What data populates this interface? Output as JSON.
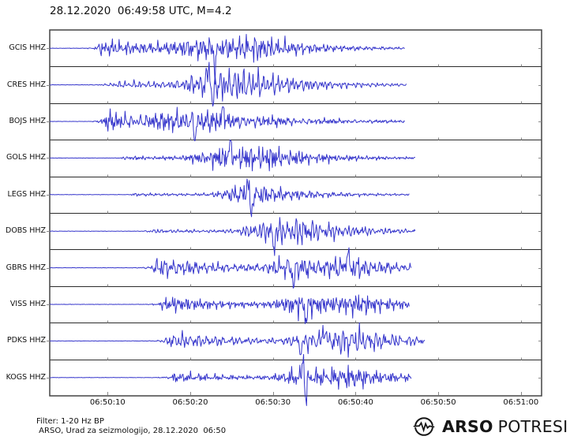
{
  "title": "28.12.2020  06:49:58 UTC, M=4.2",
  "footer": {
    "line1": "Filter: 1-20 Hz BP",
    "line2": " ARSO, Urad za seizmologijo, 28.12.2020  06:50"
  },
  "logo": {
    "name_bold": "ARSO",
    "name_light": "POTRESI",
    "icon": "seismic-wave-circle"
  },
  "colors": {
    "trace": "#3434cb",
    "frame": "#444444",
    "divider": "#2b2b2b",
    "tick": "#888888",
    "text": "#111111",
    "background": "#ffffff"
  },
  "chart_data": {
    "type": "line",
    "subtype": "seismogram-multitrace",
    "title": "28.12.2020  06:49:58 UTC, M=4.2",
    "event": {
      "date": "28.12.2020",
      "origin_time_utc": "06:49:58",
      "magnitude": 4.2
    },
    "filter": "1-20 Hz BP",
    "x_axis": {
      "tick_labels": [
        "06:50:10",
        "06:50:20",
        "06:50:30",
        "06:50:40",
        "06:50:50",
        "06:51:00"
      ],
      "tick_seconds": [
        10,
        20,
        30,
        40,
        50,
        60
      ],
      "window_start_s": 3.0,
      "window_end_s": 62.5,
      "reference": "06:50:00 UTC",
      "grid": false
    },
    "legend": null,
    "stations": [
      {
        "label": "GCIS HHZ",
        "seed": 11,
        "p_onset_s": 8.4,
        "trace_end_s": 46.0,
        "p_level": 4.5,
        "bumps": [
          [
            10.2,
            7,
            1.0,
            6
          ],
          [
            22.8,
            13,
            3.5,
            6
          ],
          [
            28.3,
            11,
            2,
            6
          ]
        ],
        "spikes": [
          [
            23.0,
            27,
            -1
          ]
        ]
      },
      {
        "label": "CRES HHZ",
        "seed": 22,
        "p_onset_s": 9.9,
        "trace_end_s": 46.2,
        "p_level": 1.5,
        "bumps": [
          [
            13,
            3.5,
            2,
            8
          ],
          [
            22.4,
            16,
            2.2,
            7
          ],
          [
            26.5,
            11,
            2,
            7
          ]
        ],
        "spikes": [
          [
            22.2,
            28,
            1
          ],
          [
            22.7,
            25,
            -1
          ]
        ]
      },
      {
        "label": "BOJS HHZ",
        "seed": 33,
        "p_onset_s": 9.3,
        "trace_end_s": 46.0,
        "p_level": 6,
        "bumps": [
          [
            10.3,
            7,
            0.8,
            8
          ],
          [
            20.8,
            12,
            3,
            9
          ]
        ],
        "spikes": [
          [
            20.6,
            20,
            -1
          ],
          [
            24.0,
            18,
            1
          ]
        ]
      },
      {
        "label": "GOLS HHZ",
        "seed": 44,
        "p_onset_s": 11.4,
        "trace_end_s": 47.3,
        "p_level": 2.5,
        "bumps": [
          [
            24.6,
            13,
            2.8,
            6.5
          ],
          [
            29.2,
            9,
            2,
            6
          ]
        ],
        "spikes": [
          [
            24.8,
            21,
            1
          ]
        ]
      },
      {
        "label": "LEGS HHZ",
        "seed": 55,
        "p_onset_s": 12.6,
        "trace_end_s": 46.5,
        "p_level": 2,
        "bumps": [
          [
            27.2,
            15,
            2.2,
            6
          ]
        ],
        "spikes": [
          [
            27.4,
            26,
            -1
          ],
          [
            26.9,
            17,
            1
          ]
        ]
      },
      {
        "label": "DOBS HHZ",
        "seed": 66,
        "p_onset_s": 14.3,
        "trace_end_s": 47.3,
        "p_level": 2.5,
        "bumps": [
          [
            29.9,
            13,
            2.4,
            6.5
          ],
          [
            33.6,
            9,
            2,
            6
          ]
        ],
        "spikes": [
          [
            30.1,
            22,
            -1
          ]
        ]
      },
      {
        "label": "GBRS HHZ",
        "seed": 77,
        "p_onset_s": 15.2,
        "trace_end_s": 46.8,
        "p_level": 6,
        "bumps": [
          [
            17,
            7,
            1.2,
            6
          ],
          [
            32.7,
            13,
            2.2,
            5
          ],
          [
            39.3,
            12,
            1.8,
            5
          ]
        ],
        "spikes": [
          [
            32.5,
            24,
            -1
          ],
          [
            39.0,
            22,
            1
          ]
        ]
      },
      {
        "label": "VISS HHZ",
        "seed": 88,
        "p_onset_s": 16.2,
        "trace_end_s": 46.5,
        "p_level": 5,
        "bumps": [
          [
            18,
            6,
            1.2,
            5
          ],
          [
            33.9,
            14,
            2.2,
            6
          ],
          [
            40.5,
            9,
            1.5,
            5
          ]
        ],
        "spikes": [
          [
            34.0,
            23,
            -1
          ]
        ]
      },
      {
        "label": "PDKS HHZ",
        "seed": 99,
        "p_onset_s": 16.9,
        "trace_end_s": 48.4,
        "p_level": 5,
        "bumps": [
          [
            18.5,
            6,
            1.2,
            6
          ],
          [
            36.0,
            12,
            2.5,
            6
          ],
          [
            39.6,
            11,
            1.5,
            5.5
          ]
        ],
        "spikes": [
          [
            36.2,
            20,
            1
          ],
          [
            33.4,
            17,
            -1
          ]
        ]
      },
      {
        "label": "KOGS HHZ",
        "seed": 110,
        "p_onset_s": 17.4,
        "trace_end_s": 46.8,
        "p_level": 3,
        "bumps": [
          [
            19,
            4,
            1.2,
            5
          ],
          [
            33.8,
            13,
            2,
            5.5
          ],
          [
            39.8,
            10,
            2,
            5
          ]
        ],
        "spikes": [
          [
            33.7,
            34,
            1
          ],
          [
            33.95,
            38,
            -1
          ]
        ]
      }
    ],
    "ylabel": "",
    "xlabel": "",
    "units": "relative amplitude"
  }
}
